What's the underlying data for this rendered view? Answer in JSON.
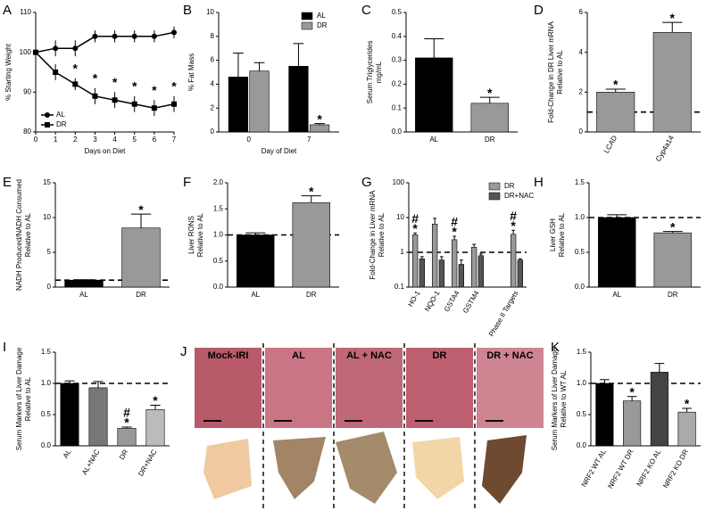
{
  "chart_data": [
    {
      "type": "line",
      "panel": "A",
      "ylabel": [
        "% Starting Weight"
      ],
      "xlabel": "Days on Diet",
      "x": [
        0,
        1,
        2,
        3,
        4,
        5,
        6,
        7
      ],
      "xlim": [
        0,
        7
      ],
      "xticks": [
        0,
        1,
        2,
        3,
        4,
        5,
        6,
        7
      ],
      "ylim": [
        80,
        110
      ],
      "yticks": [
        80,
        90,
        100,
        110
      ],
      "legend": "lower left",
      "series": [
        {
          "name": "AL",
          "color": "#000000",
          "marker": "circle",
          "values": [
            100,
            101,
            101,
            104,
            104,
            104,
            104,
            105
          ],
          "errors": [
            0.5,
            2,
            2,
            1.5,
            1.5,
            1.5,
            1.5,
            1.5
          ],
          "sig": [
            null,
            null,
            null,
            null,
            null,
            null,
            null,
            null
          ]
        },
        {
          "name": "DR",
          "color": "#000000",
          "marker": "square",
          "values": [
            100,
            95,
            92,
            89,
            88,
            87,
            86,
            87
          ],
          "errors": [
            0.5,
            2,
            1.5,
            2,
            2,
            2,
            2,
            2
          ],
          "sig": [
            null,
            null,
            [
              "*"
            ],
            [
              "*"
            ],
            [
              "*"
            ],
            [
              "*"
            ],
            [
              "*"
            ],
            [
              "*"
            ]
          ]
        }
      ]
    },
    {
      "type": "bar",
      "panel": "B",
      "ylabel": [
        "% Fat Mass"
      ],
      "xlabel": "Day of Diet",
      "categories": [
        "0",
        "7"
      ],
      "ylim": [
        0,
        10
      ],
      "yticks": [
        0,
        2,
        4,
        6,
        8,
        10
      ],
      "legend": "upper right",
      "series": [
        {
          "name": "AL",
          "color": "#000000",
          "values": [
            4.6,
            5.5
          ],
          "errors": [
            2.0,
            1.9
          ],
          "sig": [
            null,
            null
          ]
        },
        {
          "name": "DR",
          "color": "#999999",
          "values": [
            5.1,
            0.6
          ],
          "errors": [
            0.7,
            0.1
          ],
          "sig": [
            null,
            [
              "*"
            ]
          ]
        }
      ]
    },
    {
      "type": "bar",
      "panel": "C",
      "ylabel": [
        "Serum Triglycerides",
        "mg/mL"
      ],
      "categories": [
        "AL",
        "DR"
      ],
      "ylim": [
        0,
        0.5
      ],
      "yticks": [
        {
          "value": 0,
          "label": "0.0"
        },
        0.1,
        0.2,
        0.3,
        0.4,
        0.5
      ],
      "values": [
        0.31,
        0.12
      ],
      "errors": [
        0.08,
        0.025
      ],
      "colors": [
        "#000000",
        "#999999"
      ],
      "sig": [
        null,
        [
          "*"
        ]
      ]
    },
    {
      "type": "bar",
      "panel": "D",
      "ylabel": [
        "Fold-Change in DR Liver mRNA",
        "Relative to AL"
      ],
      "rotate_categories": true,
      "categories": [
        "LCAD",
        "Cyp4a14"
      ],
      "ylim": [
        0,
        6
      ],
      "yticks": [
        0,
        2,
        4,
        6
      ],
      "reference_line": 1,
      "values": [
        2.0,
        5.0
      ],
      "errors": [
        0.15,
        0.5
      ],
      "colors": [
        "#999999",
        "#999999"
      ],
      "sig": [
        [
          "*"
        ],
        [
          "*"
        ]
      ]
    },
    {
      "type": "bar",
      "panel": "E",
      "ylabel": [
        "NADH Produced/NADH Consumed",
        "Relative to AL"
      ],
      "categories": [
        "AL",
        "DR"
      ],
      "ylim": [
        0,
        15
      ],
      "yticks": [
        0,
        5,
        10,
        15
      ],
      "reference_line": 1,
      "values": [
        1.0,
        8.5
      ],
      "errors": [
        0.05,
        2.0
      ],
      "colors": [
        "#000000",
        "#999999"
      ],
      "sig": [
        null,
        [
          "*"
        ]
      ]
    },
    {
      "type": "bar",
      "panel": "F",
      "ylabel": [
        "Liver RONS",
        "Relative to AL"
      ],
      "categories": [
        "AL",
        "DR"
      ],
      "ylim": [
        0,
        2
      ],
      "yticks": [
        {
          "value": 0,
          "label": "0.0"
        },
        0.5,
        {
          "value": 1,
          "label": "1.0"
        },
        1.5,
        {
          "value": 2,
          "label": "2.0"
        }
      ],
      "reference_line": 1,
      "values": [
        1.0,
        1.62
      ],
      "errors": [
        0.04,
        0.13
      ],
      "colors": [
        "#000000",
        "#999999"
      ],
      "sig": [
        null,
        [
          "*"
        ]
      ]
    },
    {
      "type": "bar",
      "panel": "G",
      "ylabel": [
        "Fold-Change in Liver mRNA",
        "Relative to AL"
      ],
      "rotate_categories": true,
      "log": true,
      "categories": [
        "HO-1",
        "NQO-1",
        "GSTA4",
        "GSTM4",
        null,
        "Phase II Targets"
      ],
      "ylim": [
        0.1,
        100
      ],
      "yticks": [
        0.1,
        1,
        10,
        100
      ],
      "reference_line": 1,
      "legend": "upper right",
      "series": [
        {
          "name": "DR",
          "color": "#999999",
          "values": [
            3.2,
            6.5,
            2.3,
            1.4,
            null,
            3.3
          ],
          "errors": [
            0.4,
            3.0,
            0.6,
            0.3,
            null,
            1.0
          ],
          "sig": [
            [
              "#",
              "*"
            ],
            null,
            [
              "#",
              "*"
            ],
            null,
            null,
            [
              "#",
              "*"
            ]
          ]
        },
        {
          "name": "DR+NAC",
          "color": "#555555",
          "values": [
            0.65,
            0.6,
            0.45,
            0.8,
            null,
            0.6
          ],
          "errors": [
            0.1,
            0.15,
            0.15,
            0.1,
            null,
            0.05
          ],
          "sig": [
            null,
            null,
            null,
            null,
            null,
            null
          ]
        }
      ]
    },
    {
      "type": "bar",
      "panel": "H",
      "ylabel": [
        "Liver GSH",
        "Relative to AL"
      ],
      "categories": [
        "AL",
        "DR"
      ],
      "ylim": [
        0,
        1.5
      ],
      "yticks": [
        {
          "value": 0,
          "label": "0.0"
        },
        0.5,
        {
          "value": 1,
          "label": "1.0"
        },
        1.5
      ],
      "reference_line": 1,
      "values": [
        1.0,
        0.78
      ],
      "errors": [
        0.04,
        0.02
      ],
      "colors": [
        "#000000",
        "#999999"
      ],
      "sig": [
        null,
        [
          "*"
        ]
      ]
    },
    {
      "type": "bar",
      "panel": "I",
      "ylabel": [
        "Serum  Markers of Liver Damage",
        "Relative to AL"
      ],
      "rotate_categories": true,
      "categories": [
        "AL",
        "AL+NAC",
        "DR",
        "DR+NAC"
      ],
      "ylim": [
        0,
        1.5
      ],
      "yticks": [
        {
          "value": 0,
          "label": "0.0"
        },
        0.5,
        {
          "value": 1,
          "label": "1.0"
        },
        1.5
      ],
      "reference_line": 1,
      "values": [
        1.0,
        0.93,
        0.28,
        0.58
      ],
      "errors": [
        0.04,
        0.1,
        0.02,
        0.07
      ],
      "colors": [
        "#000000",
        "#777777",
        "#999999",
        "#bbbbbb"
      ],
      "sig": [
        null,
        null,
        [
          "#",
          "*"
        ],
        [
          "*"
        ]
      ]
    },
    {
      "type": "bar",
      "panel": "K",
      "ylabel": [
        "Serum Markers of Liver Damage",
        "Relative to WT AL"
      ],
      "rotate_categories": true,
      "categories": [
        "NRF2 WT AL",
        "NRF2 WT DR",
        "NRF2 KO AL",
        "NRF2 KO DR"
      ],
      "ylim": [
        0,
        1.5
      ],
      "yticks": [
        {
          "value": 0,
          "label": "0.0"
        },
        0.5,
        {
          "value": 1,
          "label": "1.0"
        },
        1.5
      ],
      "reference_line": 1,
      "values": [
        1.0,
        0.72,
        1.18,
        0.54
      ],
      "errors": [
        0.06,
        0.07,
        0.14,
        0.06
      ],
      "colors": [
        "#000000",
        "#999999",
        "#444444",
        "#aaaaaa"
      ],
      "sig": [
        null,
        [
          "*"
        ],
        null,
        [
          "*"
        ]
      ]
    }
  ],
  "image_panel": {
    "panel": "J",
    "labels": [
      "Mock-IRI",
      "AL",
      "AL + NAC",
      "DR",
      "DR + NAC"
    ]
  }
}
